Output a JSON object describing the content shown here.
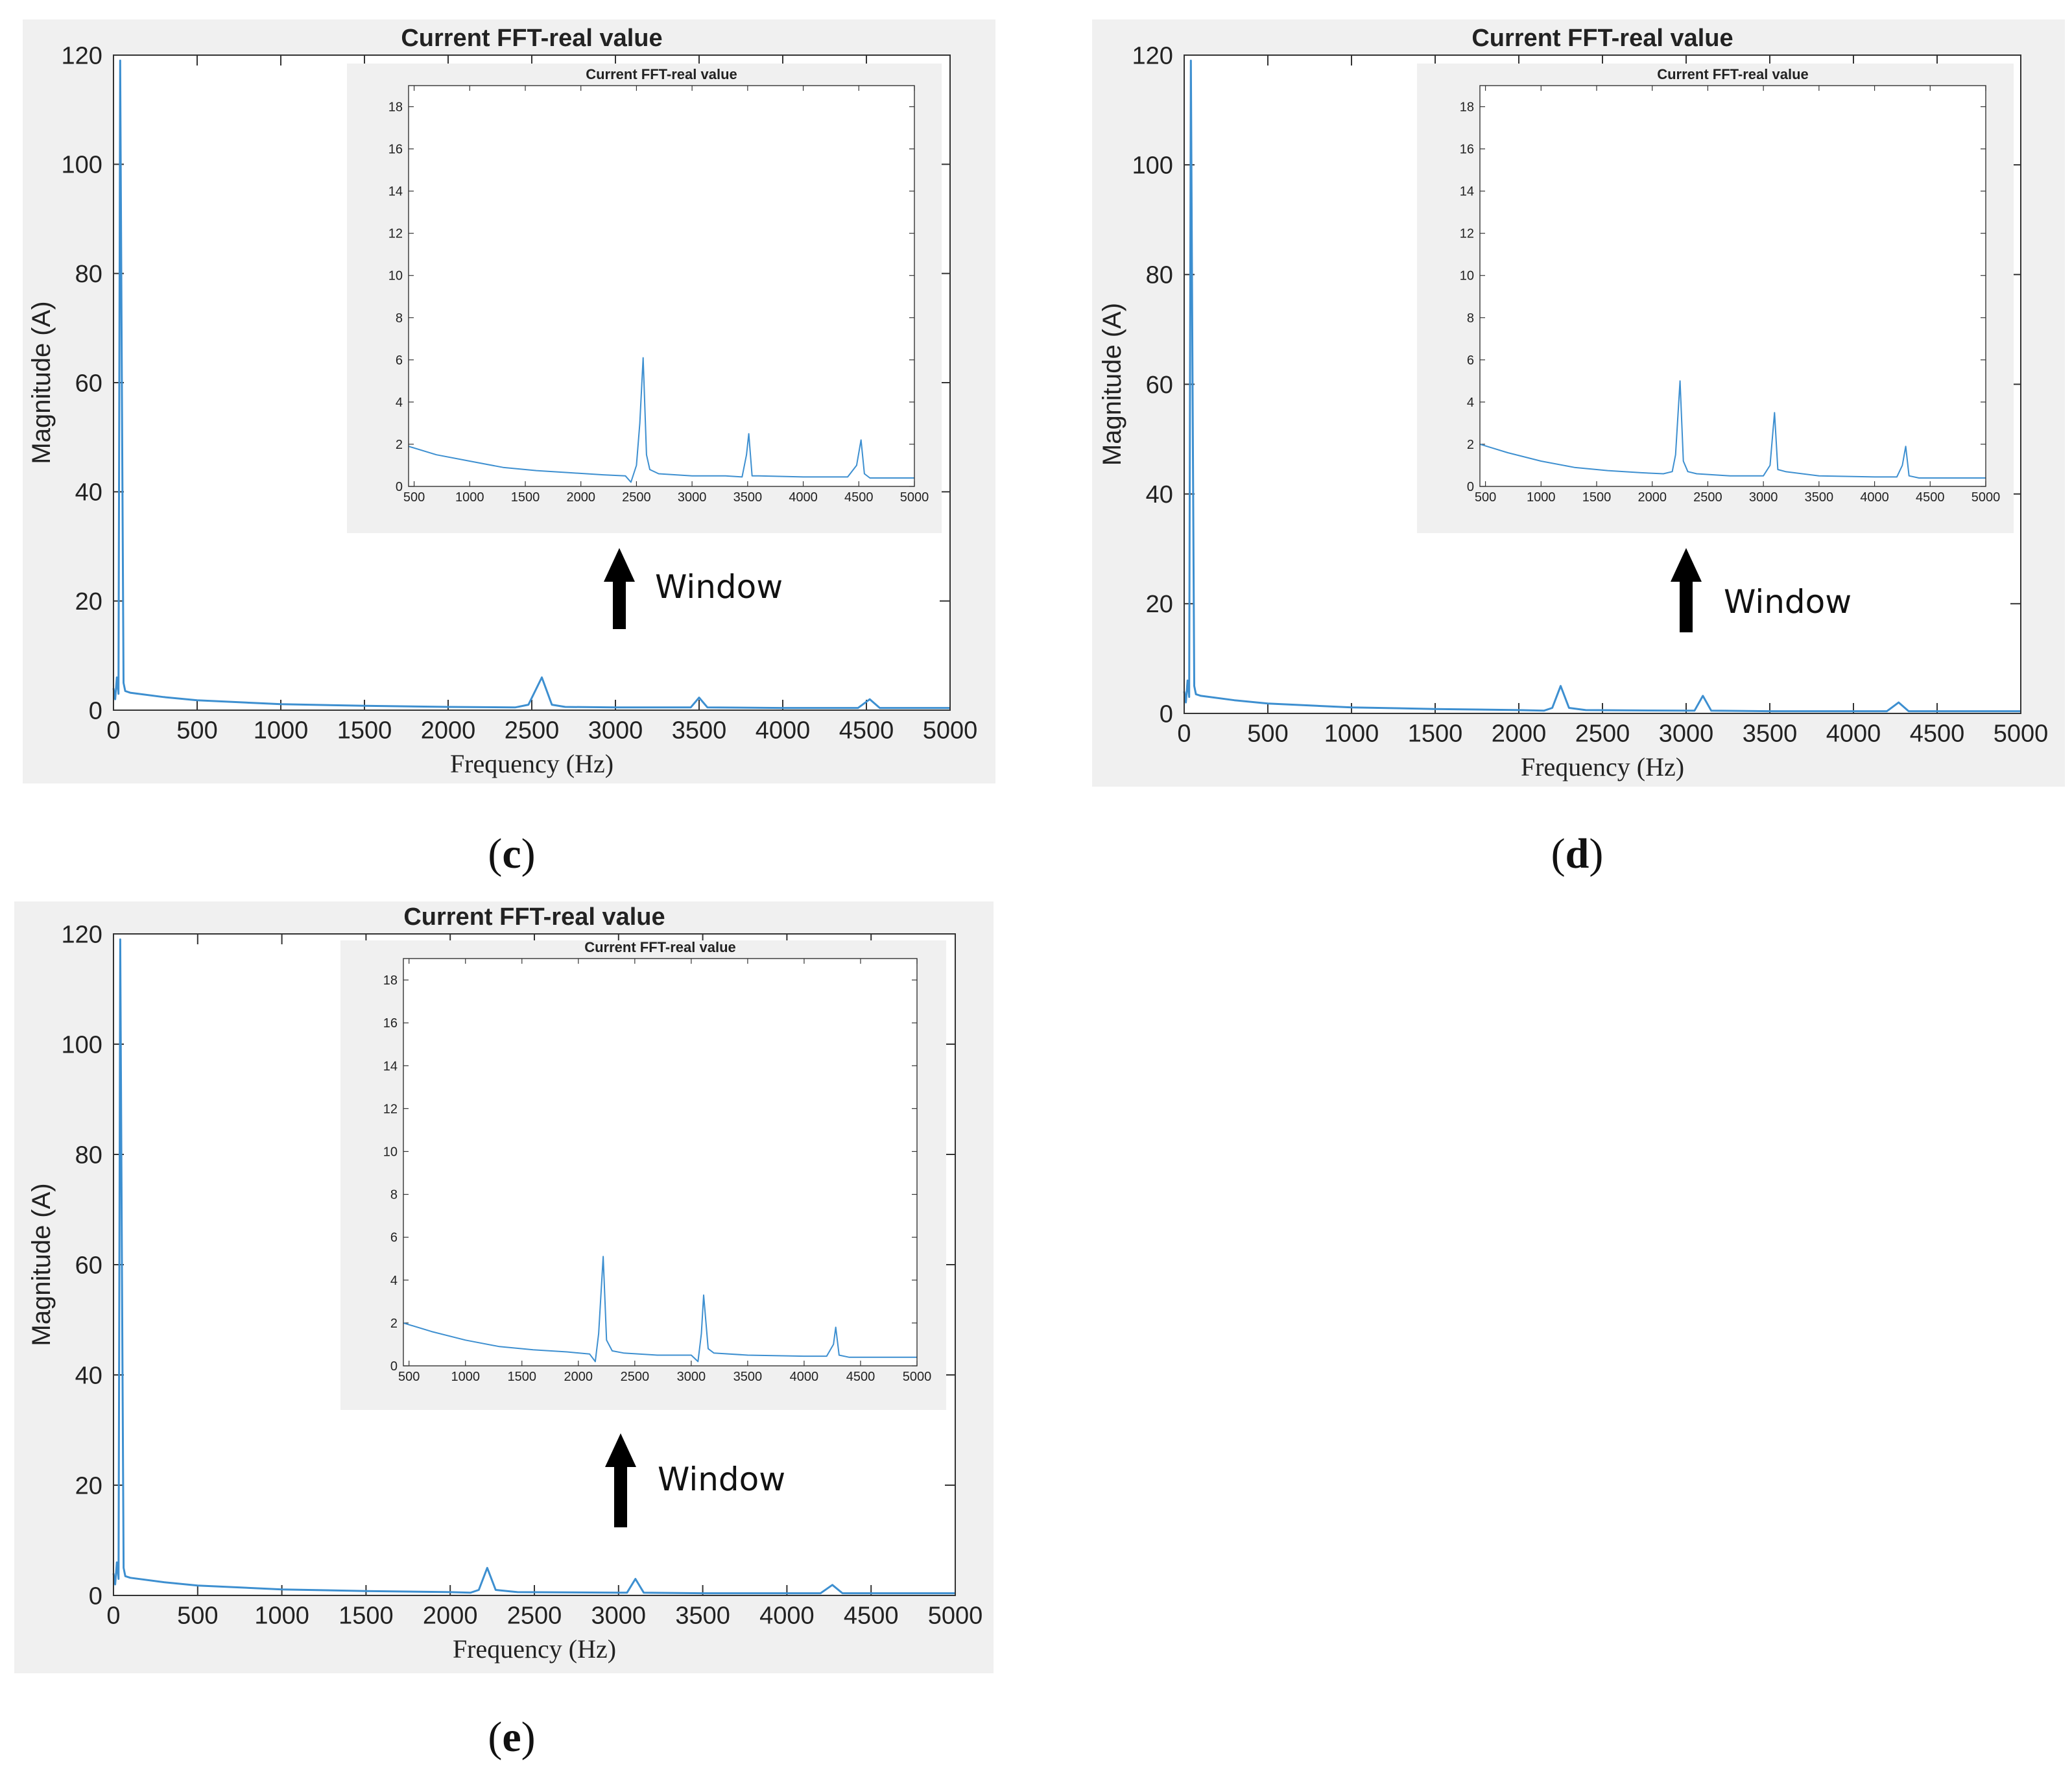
{
  "panels": [
    {
      "caption_letter": "c",
      "window_label": "Window"
    },
    {
      "caption_letter": "d",
      "window_label": "Window"
    },
    {
      "caption_letter": "e",
      "window_label": "Window"
    }
  ],
  "chart_data": [
    {
      "panel": "c",
      "main": {
        "type": "line",
        "title": "Current FFT-real value",
        "xlabel": "Frequency (Hz)",
        "ylabel": "Magnitude (A)",
        "xlim": [
          0,
          5000
        ],
        "ylim": [
          0,
          120
        ],
        "xticks": [
          0,
          500,
          1000,
          1500,
          2000,
          2500,
          3000,
          3500,
          4000,
          4500,
          5000
        ],
        "yticks": [
          0,
          20,
          40,
          60,
          80,
          100,
          120
        ],
        "x": [
          0,
          10,
          20,
          30,
          40,
          50,
          60,
          70,
          100,
          300,
          500,
          1000,
          1500,
          2000,
          2400,
          2480,
          2560,
          2620,
          2700,
          3000,
          3450,
          3500,
          3550,
          4000,
          4450,
          4520,
          4580,
          5000
        ],
        "y": [
          4,
          2,
          6,
          3,
          119,
          60,
          5,
          3.5,
          3.2,
          2.4,
          1.8,
          1.1,
          0.8,
          0.6,
          0.5,
          1,
          6,
          1,
          0.6,
          0.5,
          0.5,
          2.3,
          0.5,
          0.4,
          0.4,
          2,
          0.4,
          0.4
        ]
      },
      "inset": {
        "type": "line",
        "title": "Current FFT-real value",
        "xlim": [
          450,
          5000
        ],
        "ylim": [
          0,
          19
        ],
        "xticks": [
          500,
          1000,
          1500,
          2000,
          2500,
          3000,
          3500,
          4000,
          4500,
          5000
        ],
        "yticks": [
          0,
          2,
          4,
          6,
          8,
          10,
          12,
          14,
          16,
          18
        ],
        "x": [
          450,
          700,
          1000,
          1300,
          1600,
          1900,
          2200,
          2400,
          2450,
          2500,
          2530,
          2560,
          2590,
          2620,
          2700,
          3000,
          3300,
          3450,
          3490,
          3510,
          3540,
          3600,
          4000,
          4400,
          4480,
          4520,
          4550,
          4600,
          5000
        ],
        "y": [
          1.9,
          1.5,
          1.2,
          0.9,
          0.75,
          0.65,
          0.55,
          0.5,
          0.2,
          1,
          3,
          6.1,
          1.5,
          0.8,
          0.6,
          0.5,
          0.5,
          0.45,
          1.5,
          2.5,
          0.5,
          0.5,
          0.45,
          0.45,
          1,
          2.2,
          0.6,
          0.4,
          0.4
        ]
      }
    },
    {
      "panel": "d",
      "main": {
        "type": "line",
        "title": "Current FFT-real value",
        "xlabel": "Frequency (Hz)",
        "ylabel": "Magnitude (A)",
        "xlim": [
          0,
          5000
        ],
        "ylim": [
          0,
          120
        ],
        "xticks": [
          0,
          500,
          1000,
          1500,
          2000,
          2500,
          3000,
          3500,
          4000,
          4500,
          5000
        ],
        "yticks": [
          0,
          20,
          40,
          60,
          80,
          100,
          120
        ],
        "x": [
          0,
          10,
          20,
          30,
          40,
          50,
          60,
          70,
          100,
          300,
          500,
          1000,
          1500,
          2000,
          2150,
          2200,
          2250,
          2300,
          2400,
          3000,
          3050,
          3100,
          3150,
          3500,
          4200,
          4270,
          4330,
          5000
        ],
        "y": [
          4,
          2,
          6,
          3,
          119,
          60,
          5,
          3.5,
          3.2,
          2.4,
          1.8,
          1.1,
          0.8,
          0.6,
          0.5,
          1,
          5,
          1,
          0.6,
          0.5,
          0.5,
          3.2,
          0.5,
          0.4,
          0.4,
          2,
          0.4,
          0.4
        ]
      },
      "inset": {
        "type": "line",
        "title": "Current FFT-real value",
        "xlim": [
          450,
          5000
        ],
        "ylim": [
          0,
          19
        ],
        "xticks": [
          500,
          1000,
          1500,
          2000,
          2500,
          3000,
          3500,
          4000,
          4500,
          5000
        ],
        "yticks": [
          0,
          2,
          4,
          6,
          8,
          10,
          12,
          14,
          16,
          18
        ],
        "x": [
          450,
          700,
          1000,
          1300,
          1600,
          1900,
          2100,
          2180,
          2210,
          2250,
          2280,
          2320,
          2400,
          2700,
          3000,
          3060,
          3100,
          3130,
          3200,
          3500,
          4000,
          4200,
          4250,
          4280,
          4310,
          4400,
          5000
        ],
        "y": [
          2,
          1.6,
          1.2,
          0.9,
          0.75,
          0.65,
          0.6,
          0.7,
          1.5,
          5,
          1.2,
          0.7,
          0.6,
          0.5,
          0.5,
          1,
          3.5,
          0.8,
          0.7,
          0.5,
          0.45,
          0.45,
          1,
          1.9,
          0.5,
          0.4,
          0.4
        ]
      }
    },
    {
      "panel": "e",
      "main": {
        "type": "line",
        "title": "Current FFT-real value",
        "xlabel": "Frequency (Hz)",
        "ylabel": "Magnitude (A)",
        "xlim": [
          0,
          5000
        ],
        "ylim": [
          0,
          120
        ],
        "xticks": [
          0,
          500,
          1000,
          1500,
          2000,
          2500,
          3000,
          3500,
          4000,
          4500,
          5000
        ],
        "yticks": [
          0,
          20,
          40,
          60,
          80,
          100,
          120
        ],
        "x": [
          0,
          10,
          20,
          30,
          40,
          50,
          60,
          70,
          100,
          300,
          500,
          1000,
          1500,
          2000,
          2120,
          2170,
          2220,
          2270,
          2400,
          3000,
          3050,
          3100,
          3150,
          3500,
          4200,
          4270,
          4330,
          5000
        ],
        "y": [
          4,
          2,
          6,
          3,
          119,
          60,
          5,
          3.5,
          3.2,
          2.4,
          1.8,
          1.1,
          0.8,
          0.6,
          0.5,
          1,
          5,
          1,
          0.6,
          0.5,
          0.5,
          3,
          0.5,
          0.4,
          0.4,
          1.9,
          0.4,
          0.4
        ]
      },
      "inset": {
        "type": "line",
        "title": "Current FFT-real value",
        "xlim": [
          450,
          5000
        ],
        "ylim": [
          0,
          19
        ],
        "xticks": [
          500,
          1000,
          1500,
          2000,
          2500,
          3000,
          3500,
          4000,
          4500,
          5000
        ],
        "yticks": [
          0,
          2,
          4,
          6,
          8,
          10,
          12,
          14,
          16,
          18
        ],
        "x": [
          450,
          700,
          1000,
          1300,
          1600,
          1900,
          2100,
          2150,
          2180,
          2220,
          2250,
          2300,
          2400,
          2700,
          3000,
          3060,
          3090,
          3110,
          3150,
          3200,
          3500,
          4000,
          4200,
          4260,
          4280,
          4310,
          4400,
          5000
        ],
        "y": [
          2,
          1.6,
          1.2,
          0.9,
          0.75,
          0.65,
          0.55,
          0.2,
          1.5,
          5.1,
          1.2,
          0.7,
          0.6,
          0.5,
          0.5,
          0.2,
          1.5,
          3.3,
          0.8,
          0.6,
          0.5,
          0.45,
          0.45,
          1,
          1.8,
          0.5,
          0.4,
          0.4
        ]
      }
    }
  ]
}
